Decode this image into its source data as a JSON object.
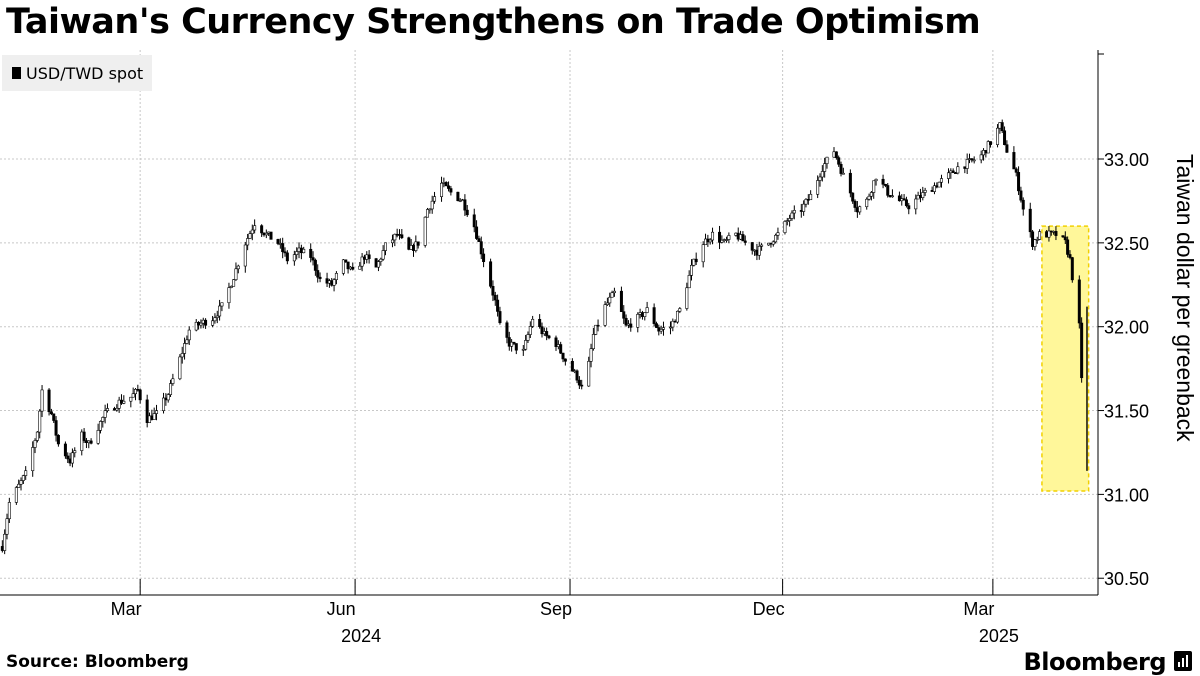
{
  "title": "Taiwan's Currency Strengthens on Trade Optimism",
  "source": "Source: Bloomberg",
  "brand": "Bloomberg",
  "brand_icon": "bloomberg-terminal-icon",
  "colors": {
    "candle": "#000000",
    "grid": "#c8c8c8",
    "highlight_fill": "#fff79a",
    "highlight_border": "#f2d100"
  },
  "chart_data": {
    "type": "candlestick",
    "title": "Taiwan's Currency Strengthens on Trade Optimism",
    "series_name": "USD/TWD spot",
    "ylabel": "Taiwan dollar per greenback",
    "ylim": [
      30.4,
      33.65
    ],
    "yticks": [
      30.5,
      31.0,
      31.5,
      32.0,
      32.5,
      33.0
    ],
    "ytick_labels": [
      "30.50",
      "31.00",
      "31.50",
      "32.00",
      "32.50",
      "33.00"
    ],
    "x_start": "2024-01-01",
    "x_end": "2025-04-15",
    "month_ticks": [
      {
        "date": "2024-03-01",
        "label": "Mar"
      },
      {
        "date": "2024-06-01",
        "label": "Jun"
      },
      {
        "date": "2024-09-01",
        "label": "Sep"
      },
      {
        "date": "2024-12-01",
        "label": "Dec"
      },
      {
        "date": "2025-03-01",
        "label": "Mar"
      }
    ],
    "year_labels": [
      {
        "date": "2024-06-01",
        "label": "2024"
      },
      {
        "date": "2025-03-01",
        "label": "2025"
      }
    ],
    "grid": true,
    "legend": "top-left",
    "close_path": [
      [
        "2024-01-02",
        30.69
      ],
      [
        "2024-01-05",
        30.95
      ],
      [
        "2024-01-09",
        31.05
      ],
      [
        "2024-01-12",
        31.12
      ],
      [
        "2024-01-17",
        31.38
      ],
      [
        "2024-01-19",
        31.62
      ],
      [
        "2024-01-23",
        31.48
      ],
      [
        "2024-01-26",
        31.3
      ],
      [
        "2024-01-31",
        31.2
      ],
      [
        "2024-02-05",
        31.35
      ],
      [
        "2024-02-08",
        31.3
      ],
      [
        "2024-02-15",
        31.48
      ],
      [
        "2024-02-21",
        31.55
      ],
      [
        "2024-02-26",
        31.58
      ],
      [
        "2024-02-29",
        31.62
      ],
      [
        "2024-03-04",
        31.45
      ],
      [
        "2024-03-08",
        31.48
      ],
      [
        "2024-03-13",
        31.6
      ],
      [
        "2024-03-19",
        31.85
      ],
      [
        "2024-03-22",
        31.98
      ],
      [
        "2024-03-27",
        32.02
      ],
      [
        "2024-04-01",
        32.05
      ],
      [
        "2024-04-05",
        32.12
      ],
      [
        "2024-04-10",
        32.3
      ],
      [
        "2024-04-15",
        32.5
      ],
      [
        "2024-04-19",
        32.62
      ],
      [
        "2024-04-24",
        32.55
      ],
      [
        "2024-04-29",
        32.5
      ],
      [
        "2024-05-03",
        32.4
      ],
      [
        "2024-05-08",
        32.45
      ],
      [
        "2024-05-13",
        32.42
      ],
      [
        "2024-05-17",
        32.28
      ],
      [
        "2024-05-22",
        32.25
      ],
      [
        "2024-05-27",
        32.38
      ],
      [
        "2024-05-31",
        32.32
      ],
      [
        "2024-06-05",
        32.42
      ],
      [
        "2024-06-10",
        32.35
      ],
      [
        "2024-06-14",
        32.48
      ],
      [
        "2024-06-19",
        32.55
      ],
      [
        "2024-06-24",
        32.45
      ],
      [
        "2024-06-28",
        32.5
      ],
      [
        "2024-07-02",
        32.7
      ],
      [
        "2024-07-08",
        32.85
      ],
      [
        "2024-07-12",
        32.8
      ],
      [
        "2024-07-17",
        32.75
      ],
      [
        "2024-07-22",
        32.6
      ],
      [
        "2024-07-26",
        32.4
      ],
      [
        "2024-07-31",
        32.15
      ],
      [
        "2024-08-02",
        32.0
      ],
      [
        "2024-08-06",
        31.9
      ],
      [
        "2024-08-12",
        31.85
      ],
      [
        "2024-08-16",
        32.05
      ],
      [
        "2024-08-21",
        31.95
      ],
      [
        "2024-08-26",
        31.9
      ],
      [
        "2024-08-30",
        31.8
      ],
      [
        "2024-09-04",
        31.7
      ],
      [
        "2024-09-07",
        31.6
      ],
      [
        "2024-09-11",
        31.95
      ],
      [
        "2024-09-16",
        32.12
      ],
      [
        "2024-09-20",
        32.2
      ],
      [
        "2024-09-25",
        32.0
      ],
      [
        "2024-09-30",
        32.05
      ],
      [
        "2024-10-04",
        32.1
      ],
      [
        "2024-10-09",
        31.98
      ],
      [
        "2024-10-14",
        32.0
      ],
      [
        "2024-10-18",
        32.1
      ],
      [
        "2024-10-23",
        32.35
      ],
      [
        "2024-10-28",
        32.5
      ],
      [
        "2024-11-01",
        32.55
      ],
      [
        "2024-11-06",
        32.5
      ],
      [
        "2024-11-11",
        32.55
      ],
      [
        "2024-11-15",
        32.5
      ],
      [
        "2024-11-20",
        32.45
      ],
      [
        "2024-11-25",
        32.5
      ],
      [
        "2024-11-29",
        32.55
      ],
      [
        "2024-12-04",
        32.65
      ],
      [
        "2024-12-09",
        32.7
      ],
      [
        "2024-12-13",
        32.78
      ],
      [
        "2024-12-18",
        32.95
      ],
      [
        "2024-12-23",
        33.05
      ],
      [
        "2024-12-27",
        32.9
      ],
      [
        "2025-01-02",
        32.7
      ],
      [
        "2025-01-06",
        32.75
      ],
      [
        "2025-01-10",
        32.9
      ],
      [
        "2025-01-15",
        32.8
      ],
      [
        "2025-01-20",
        32.75
      ],
      [
        "2025-01-24",
        32.72
      ],
      [
        "2025-01-31",
        32.8
      ],
      [
        "2025-02-05",
        32.85
      ],
      [
        "2025-02-10",
        32.9
      ],
      [
        "2025-02-14",
        32.95
      ],
      [
        "2025-02-19",
        32.98
      ],
      [
        "2025-02-24",
        33.02
      ],
      [
        "2025-02-28",
        33.1
      ],
      [
        "2025-03-04",
        33.2
      ],
      [
        "2025-03-07",
        33.05
      ],
      [
        "2025-03-11",
        32.9
      ],
      [
        "2025-03-14",
        32.7
      ],
      [
        "2025-03-18",
        32.5
      ],
      [
        "2025-03-21",
        32.55
      ],
      [
        "2025-03-25",
        32.55
      ],
      [
        "2025-03-28",
        32.55
      ],
      [
        "2025-04-01",
        32.5
      ],
      [
        "2025-04-03",
        32.4
      ],
      [
        "2025-04-07",
        32.0
      ],
      [
        "2025-04-09",
        31.35
      ]
    ],
    "highlight": {
      "start": "2025-03-22",
      "end": "2025-04-11",
      "y_range": [
        31.02,
        32.6
      ]
    }
  }
}
